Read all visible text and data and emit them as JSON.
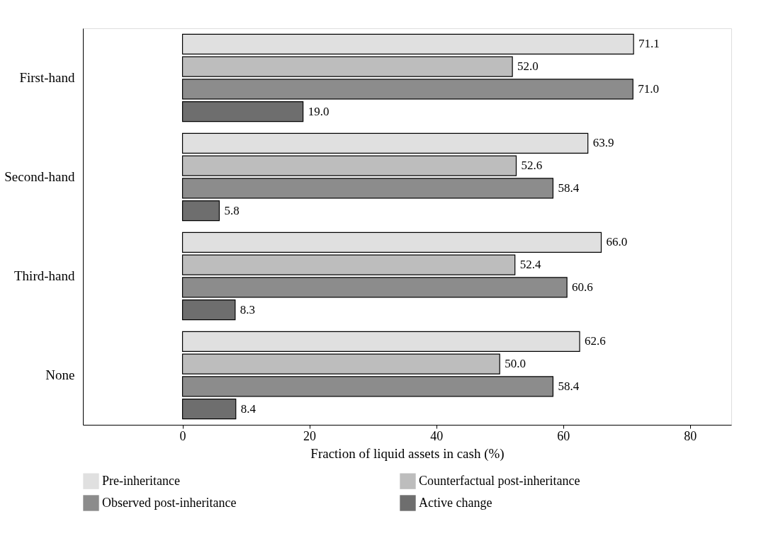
{
  "chart_data": {
    "type": "bar",
    "orientation": "horizontal",
    "xlabel": "Fraction of liquid assets in cash (%)",
    "categories": [
      "First-hand",
      "Second-hand",
      "Third-hand",
      "None"
    ],
    "series": [
      {
        "name": "Pre-inheritance",
        "color": "#e0e0e0",
        "values": [
          71.1,
          63.9,
          66.0,
          62.6
        ],
        "value_labels": [
          "71.1",
          "63.9",
          "66.0",
          "62.6"
        ]
      },
      {
        "name": "Counterfactual post-inheritance",
        "color": "#bdbdbd",
        "values": [
          52.0,
          52.6,
          52.4,
          50.0
        ],
        "value_labels": [
          "52.0",
          "52.6",
          "52.4",
          "50.0"
        ]
      },
      {
        "name": "Observed post-inheritance",
        "color": "#8c8c8c",
        "values": [
          71.0,
          58.4,
          60.6,
          58.4
        ],
        "value_labels": [
          "71.0",
          "58.4",
          "60.6",
          "58.4"
        ]
      },
      {
        "name": "Active change",
        "color": "#6e6e6e",
        "values": [
          19.0,
          5.8,
          8.3,
          8.4
        ],
        "value_labels": [
          "19.0",
          "5.8",
          "8.3",
          "8.4"
        ]
      }
    ],
    "xlim": [
      -15.7,
      86.5
    ],
    "xticks": [
      0,
      20,
      40,
      60,
      80
    ],
    "legend": "bottom",
    "grid": false
  }
}
